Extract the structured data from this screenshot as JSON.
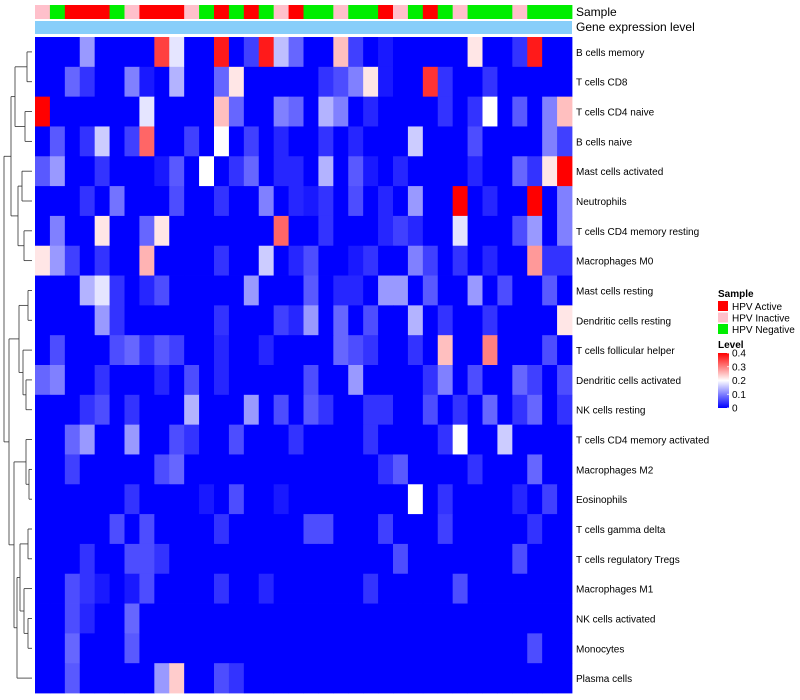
{
  "chart_data": {
    "type": "heatmap",
    "annotation_labels": [
      "Sample",
      "Gene expression level"
    ],
    "annotation_colors": {
      "HPV Active": "#ff0000",
      "HPV Inactive": "#ffc0cb",
      "HPV Negative": "#00ee00",
      "gene_level": "#87cefa"
    },
    "sample_groups": [
      "HPV Inactive",
      "HPV Negative",
      "HPV Active",
      "HPV Active",
      "HPV Active",
      "HPV Negative",
      "HPV Inactive",
      "HPV Active",
      "HPV Active",
      "HPV Active",
      "HPV Inactive",
      "HPV Negative",
      "HPV Active",
      "HPV Negative",
      "HPV Active",
      "HPV Negative",
      "HPV Inactive",
      "HPV Active",
      "HPV Negative",
      "HPV Negative",
      "HPV Inactive",
      "HPV Negative",
      "HPV Negative",
      "HPV Active",
      "HPV Inactive",
      "HPV Negative",
      "HPV Active",
      "HPV Negative",
      "HPV Inactive",
      "HPV Negative",
      "HPV Negative",
      "HPV Negative",
      "HPV Inactive",
      "HPV Negative",
      "HPV Negative",
      "HPV Negative"
    ],
    "rows": [
      "B cells memory",
      "T cells CD8",
      "T cells CD4 naive",
      "B cells naive",
      "Mast cells activated",
      "Neutrophils",
      "T cells CD4 memory resting",
      "Macrophages M0",
      "Mast cells resting",
      "Dendritic cells resting",
      "T cells follicular helper",
      "Dendritic cells activated",
      "NK cells resting",
      "T cells CD4 memory activated",
      "Macrophages M2",
      "Eosinophils",
      "T cells gamma delta",
      "T cells regulatory  Tregs",
      "Macrophages M1",
      "NK cells activated",
      "Monocytes",
      "Plasma cells"
    ],
    "values": [
      [
        0.0,
        0.0,
        0.0,
        0.12,
        0.0,
        0.0,
        0.0,
        0.0,
        0.35,
        0.18,
        0.0,
        0.0,
        0.38,
        0.0,
        0.05,
        0.38,
        0.15,
        0.08,
        0.0,
        0.0,
        0.25,
        0.05,
        0.0,
        0.02,
        0.0,
        0.0,
        0.0,
        0.0,
        0.0,
        0.22,
        0.0,
        0.0,
        0.04,
        0.38,
        0.0,
        0.0
      ],
      [
        0.0,
        0.0,
        0.08,
        0.04,
        0.0,
        0.0,
        0.1,
        0.02,
        0.0,
        0.14,
        0.0,
        0.0,
        0.08,
        0.22,
        0.0,
        0.0,
        0.0,
        0.0,
        0.0,
        0.04,
        0.06,
        0.1,
        0.22,
        0.02,
        0.0,
        0.0,
        0.36,
        0.04,
        0.0,
        0.0,
        0.04,
        0.0,
        0.0,
        0.0,
        0.0,
        0.0
      ],
      [
        0.4,
        0.0,
        0.0,
        0.0,
        0.0,
        0.0,
        0.0,
        0.18,
        0.0,
        0.0,
        0.0,
        0.0,
        0.25,
        0.08,
        0.0,
        0.0,
        0.1,
        0.08,
        0.0,
        0.14,
        0.1,
        0.0,
        0.03,
        0.0,
        0.0,
        0.0,
        0.0,
        0.04,
        0.0,
        0.04,
        0.2,
        0.0,
        0.07,
        0.0,
        0.1,
        0.25
      ],
      [
        0.0,
        0.07,
        0.0,
        0.04,
        0.16,
        0.0,
        0.05,
        0.32,
        0.0,
        0.0,
        0.05,
        0.0,
        0.2,
        0.0,
        0.05,
        0.0,
        0.03,
        0.0,
        0.0,
        0.04,
        0.0,
        0.03,
        0.0,
        0.0,
        0.0,
        0.16,
        0.0,
        0.0,
        0.0,
        0.06,
        0.0,
        0.0,
        0.0,
        0.0,
        0.1,
        0.05
      ],
      [
        0.07,
        0.12,
        0.0,
        0.0,
        0.04,
        0.0,
        0.0,
        0.0,
        0.02,
        0.07,
        0.0,
        0.2,
        0.0,
        0.04,
        0.08,
        0.0,
        0.03,
        0.03,
        0.0,
        0.14,
        0.0,
        0.07,
        0.02,
        0.0,
        0.03,
        0.0,
        0.0,
        0.0,
        0.0,
        0.03,
        0.0,
        0.0,
        0.08,
        0.04,
        0.22,
        0.4
      ],
      [
        0.0,
        0.0,
        0.0,
        0.04,
        0.0,
        0.09,
        0.0,
        0.0,
        0.0,
        0.06,
        0.0,
        0.0,
        0.04,
        0.0,
        0.0,
        0.1,
        0.0,
        0.03,
        0.02,
        0.04,
        0.0,
        0.06,
        0.0,
        0.03,
        0.0,
        0.12,
        0.0,
        0.0,
        0.4,
        0.0,
        0.03,
        0.0,
        0.0,
        0.4,
        0.0,
        0.1
      ],
      [
        0.0,
        0.1,
        0.0,
        0.0,
        0.22,
        0.0,
        0.0,
        0.08,
        0.22,
        0.0,
        0.0,
        0.0,
        0.0,
        0.0,
        0.0,
        0.0,
        0.32,
        0.0,
        0.0,
        0.04,
        0.0,
        0.0,
        0.0,
        0.03,
        0.05,
        0.03,
        0.0,
        0.0,
        0.18,
        0.0,
        0.0,
        0.0,
        0.06,
        0.12,
        0.0,
        0.1
      ],
      [
        0.22,
        0.12,
        0.05,
        0.0,
        0.04,
        0.0,
        0.0,
        0.26,
        0.0,
        0.0,
        0.0,
        0.0,
        0.04,
        0.0,
        0.0,
        0.16,
        0.0,
        0.03,
        0.06,
        0.0,
        0.0,
        0.02,
        0.04,
        0.0,
        0.0,
        0.1,
        0.05,
        0.0,
        0.04,
        0.0,
        0.03,
        0.0,
        0.0,
        0.28,
        0.04,
        0.04
      ],
      [
        0.0,
        0.0,
        0.0,
        0.14,
        0.18,
        0.04,
        0.0,
        0.03,
        0.06,
        0.0,
        0.0,
        0.0,
        0.0,
        0.0,
        0.12,
        0.0,
        0.0,
        0.0,
        0.07,
        0.0,
        0.03,
        0.03,
        0.0,
        0.12,
        0.12,
        0.0,
        0.07,
        0.0,
        0.0,
        0.12,
        0.0,
        0.06,
        0.0,
        0.0,
        0.07,
        0.0
      ],
      [
        0.0,
        0.0,
        0.0,
        0.0,
        0.12,
        0.04,
        0.0,
        0.0,
        0.0,
        0.0,
        0.0,
        0.0,
        0.04,
        0.0,
        0.0,
        0.0,
        0.05,
        0.03,
        0.12,
        0.0,
        0.08,
        0.0,
        0.06,
        0.0,
        0.0,
        0.14,
        0.0,
        0.04,
        0.0,
        0.0,
        0.04,
        0.0,
        0.0,
        0.0,
        0.0,
        0.22
      ],
      [
        0.0,
        0.06,
        0.0,
        0.0,
        0.0,
        0.06,
        0.08,
        0.04,
        0.07,
        0.05,
        0.0,
        0.0,
        0.03,
        0.0,
        0.0,
        0.03,
        0.0,
        0.0,
        0.0,
        0.0,
        0.08,
        0.06,
        0.04,
        0.0,
        0.0,
        0.04,
        0.0,
        0.25,
        0.0,
        0.0,
        0.3,
        0.0,
        0.0,
        0.0,
        0.06,
        0.0
      ],
      [
        0.08,
        0.1,
        0.0,
        0.0,
        0.04,
        0.0,
        0.0,
        0.0,
        0.03,
        0.0,
        0.06,
        0.0,
        0.03,
        0.0,
        0.0,
        0.0,
        0.0,
        0.0,
        0.06,
        0.0,
        0.0,
        0.12,
        0.0,
        0.0,
        0.0,
        0.0,
        0.04,
        0.1,
        0.0,
        0.06,
        0.0,
        0.0,
        0.08,
        0.05,
        0.0,
        0.06
      ],
      [
        0.0,
        0.0,
        0.0,
        0.04,
        0.06,
        0.0,
        0.04,
        0.0,
        0.0,
        0.0,
        0.14,
        0.0,
        0.0,
        0.0,
        0.12,
        0.0,
        0.06,
        0.0,
        0.07,
        0.04,
        0.0,
        0.0,
        0.04,
        0.04,
        0.0,
        0.0,
        0.06,
        0.0,
        0.04,
        0.0,
        0.08,
        0.0,
        0.04,
        0.08,
        0.0,
        0.04
      ],
      [
        0.0,
        0.0,
        0.08,
        0.12,
        0.0,
        0.0,
        0.12,
        0.0,
        0.0,
        0.06,
        0.04,
        0.0,
        0.0,
        0.06,
        0.0,
        0.0,
        0.0,
        0.04,
        0.0,
        0.0,
        0.0,
        0.0,
        0.04,
        0.0,
        0.0,
        0.0,
        0.0,
        0.04,
        0.2,
        0.0,
        0.0,
        0.16,
        0.0,
        0.0,
        0.0,
        0.0
      ],
      [
        0.0,
        0.0,
        0.05,
        0.0,
        0.0,
        0.0,
        0.0,
        0.0,
        0.06,
        0.08,
        0.0,
        0.0,
        0.0,
        0.0,
        0.0,
        0.0,
        0.0,
        0.0,
        0.0,
        0.0,
        0.0,
        0.0,
        0.0,
        0.04,
        0.07,
        0.0,
        0.0,
        0.0,
        0.0,
        0.04,
        0.0,
        0.0,
        0.0,
        0.08,
        0.0,
        0.0
      ],
      [
        0.0,
        0.0,
        0.0,
        0.0,
        0.0,
        0.0,
        0.04,
        0.0,
        0.0,
        0.0,
        0.0,
        0.02,
        0.0,
        0.06,
        0.0,
        0.0,
        0.02,
        0.0,
        0.0,
        0.0,
        0.0,
        0.0,
        0.0,
        0.0,
        0.0,
        0.2,
        0.0,
        0.04,
        0.0,
        0.0,
        0.0,
        0.0,
        0.03,
        0.0,
        0.05,
        0.0
      ],
      [
        0.0,
        0.0,
        0.0,
        0.0,
        0.0,
        0.06,
        0.0,
        0.06,
        0.0,
        0.0,
        0.0,
        0.0,
        0.04,
        0.0,
        0.0,
        0.0,
        0.0,
        0.0,
        0.06,
        0.06,
        0.0,
        0.0,
        0.0,
        0.05,
        0.0,
        0.0,
        0.0,
        0.05,
        0.0,
        0.0,
        0.0,
        0.0,
        0.0,
        0.04,
        0.0,
        0.0
      ],
      [
        0.0,
        0.0,
        0.0,
        0.04,
        0.0,
        0.0,
        0.06,
        0.06,
        0.04,
        0.0,
        0.0,
        0.0,
        0.0,
        0.0,
        0.0,
        0.0,
        0.0,
        0.0,
        0.0,
        0.0,
        0.0,
        0.0,
        0.0,
        0.0,
        0.06,
        0.0,
        0.0,
        0.0,
        0.0,
        0.0,
        0.0,
        0.0,
        0.06,
        0.0,
        0.0,
        0.0
      ],
      [
        0.0,
        0.0,
        0.06,
        0.04,
        0.02,
        0.0,
        0.02,
        0.06,
        0.0,
        0.0,
        0.0,
        0.0,
        0.04,
        0.0,
        0.0,
        0.03,
        0.0,
        0.0,
        0.0,
        0.0,
        0.0,
        0.0,
        0.04,
        0.0,
        0.0,
        0.0,
        0.0,
        0.0,
        0.06,
        0.0,
        0.0,
        0.0,
        0.0,
        0.0,
        0.0,
        0.0
      ],
      [
        0.0,
        0.0,
        0.06,
        0.03,
        0.0,
        0.0,
        0.08,
        0.0,
        0.0,
        0.0,
        0.0,
        0.0,
        0.0,
        0.0,
        0.0,
        0.0,
        0.0,
        0.0,
        0.0,
        0.0,
        0.0,
        0.0,
        0.0,
        0.0,
        0.0,
        0.0,
        0.0,
        0.0,
        0.0,
        0.0,
        0.0,
        0.0,
        0.0,
        0.0,
        0.0,
        0.0
      ],
      [
        0.0,
        0.0,
        0.08,
        0.0,
        0.0,
        0.0,
        0.07,
        0.0,
        0.0,
        0.0,
        0.0,
        0.0,
        0.0,
        0.0,
        0.0,
        0.0,
        0.0,
        0.0,
        0.0,
        0.0,
        0.0,
        0.0,
        0.0,
        0.0,
        0.0,
        0.0,
        0.0,
        0.0,
        0.0,
        0.0,
        0.0,
        0.0,
        0.0,
        0.06,
        0.0,
        0.0
      ],
      [
        0.0,
        0.0,
        0.07,
        0.0,
        0.0,
        0.0,
        0.0,
        0.0,
        0.12,
        0.24,
        0.0,
        0.0,
        0.06,
        0.04,
        0.0,
        0.0,
        0.0,
        0.0,
        0.0,
        0.0,
        0.0,
        0.0,
        0.0,
        0.0,
        0.0,
        0.0,
        0.0,
        0.0,
        0.0,
        0.0,
        0.0,
        0.0,
        0.0,
        0.0,
        0.0,
        0.0
      ]
    ],
    "legend": {
      "sample_title": "Sample",
      "sample_entries": [
        "HPV Active",
        "HPV Inactive",
        "HPV Negative"
      ],
      "level_title": "Level",
      "level_ticks": [
        "0.4",
        "0.3",
        "0.2",
        "0.1",
        "0"
      ],
      "level_tick_values": [
        0.4,
        0.3,
        0.2,
        0.1,
        0
      ],
      "range": [
        0,
        0.4
      ],
      "colors": [
        "#0000ff",
        "#ffffff",
        "#ff0000"
      ]
    }
  }
}
